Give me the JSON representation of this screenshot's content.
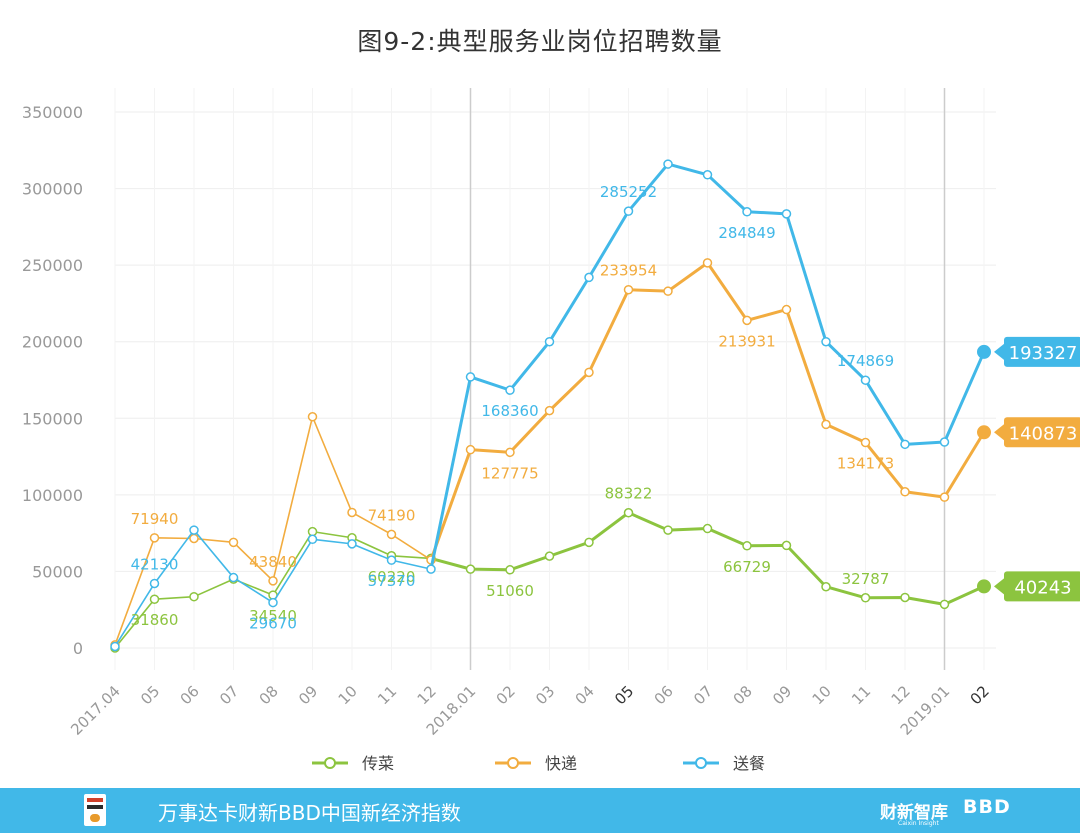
{
  "chart_data": {
    "type": "line",
    "title": "图9-2:典型服务业岗位招聘数量",
    "categories": [
      "2017.04",
      "05",
      "06",
      "07",
      "08",
      "09",
      "10",
      "11",
      "12",
      "2018.01",
      "02",
      "03",
      "04",
      "05",
      "06",
      "07",
      "08",
      "09",
      "10",
      "11",
      "12",
      "2019.01",
      "02"
    ],
    "ylim": [
      0,
      350000
    ],
    "yticks": [
      0,
      50000,
      100000,
      150000,
      200000,
      250000,
      300000,
      350000
    ],
    "ytick_labels": [
      "0",
      "50000",
      "100000",
      "150000",
      "200000",
      "250000",
      "300000",
      "350000"
    ],
    "grid": true,
    "legend_position": "bottom",
    "series": [
      {
        "name": "传菜",
        "color": "#8cc43f",
        "values": [
          0,
          31860,
          33500,
          45000,
          34540,
          76000,
          72000,
          60220,
          58500,
          51500,
          51060,
          60000,
          69000,
          88322,
          77000,
          78000,
          66729,
          67000,
          40000,
          32787,
          33000,
          28500,
          40243
        ],
        "labels": [
          {
            "index": 1,
            "text": "31860",
            "pos": "below"
          },
          {
            "index": 4,
            "text": "34540",
            "pos": "below"
          },
          {
            "index": 7,
            "text": "60220",
            "pos": "below"
          },
          {
            "index": 10,
            "text": "51060",
            "pos": "below"
          },
          {
            "index": 13,
            "text": "88322",
            "pos": "above"
          },
          {
            "index": 16,
            "text": "66729",
            "pos": "below"
          },
          {
            "index": 19,
            "text": "32787",
            "pos": "above"
          }
        ],
        "end_value": "40243"
      },
      {
        "name": "快递",
        "color": "#f2ac3f",
        "values": [
          2000,
          71940,
          71500,
          69000,
          43840,
          151000,
          88500,
          74190,
          57500,
          129500,
          127775,
          155000,
          180000,
          233954,
          233000,
          251500,
          213931,
          221000,
          146000,
          134173,
          102000,
          98500,
          140873
        ],
        "labels": [
          {
            "index": 1,
            "text": "71940",
            "pos": "above"
          },
          {
            "index": 4,
            "text": "43840",
            "pos": "above"
          },
          {
            "index": 7,
            "text": "74190",
            "pos": "above"
          },
          {
            "index": 10,
            "text": "127775",
            "pos": "below"
          },
          {
            "index": 13,
            "text": "233954",
            "pos": "above"
          },
          {
            "index": 16,
            "text": "213931",
            "pos": "below"
          },
          {
            "index": 19,
            "text": "134173",
            "pos": "below"
          }
        ],
        "end_value": "140873"
      },
      {
        "name": "送餐",
        "color": "#41b8e8",
        "values": [
          1000,
          42130,
          77000,
          46000,
          29670,
          71000,
          68000,
          57370,
          51500,
          177000,
          168360,
          200000,
          242000,
          285252,
          316000,
          309000,
          284849,
          283500,
          200000,
          174869,
          133000,
          134500,
          193327
        ],
        "labels": [
          {
            "index": 1,
            "text": "42130",
            "pos": "above"
          },
          {
            "index": 4,
            "text": "29670",
            "pos": "below"
          },
          {
            "index": 7,
            "text": "57370",
            "pos": "below"
          },
          {
            "index": 10,
            "text": "168360",
            "pos": "below"
          },
          {
            "index": 13,
            "text": "285252",
            "pos": "above"
          },
          {
            "index": 16,
            "text": "284849",
            "pos": "below"
          },
          {
            "index": 19,
            "text": "174869",
            "pos": "above"
          }
        ],
        "end_value": "193327"
      }
    ]
  },
  "footer": {
    "title": "万事达卡财新BBD中国新经济指数",
    "brand_primary": "财新智库",
    "brand_primary_sub": "Caixin Insight",
    "brand_secondary": "BBD"
  },
  "colors": {
    "footer_bg": "#41b8e8",
    "grid": "#eeeeee",
    "axis_text": "#999999",
    "separator": "#cccccc"
  }
}
